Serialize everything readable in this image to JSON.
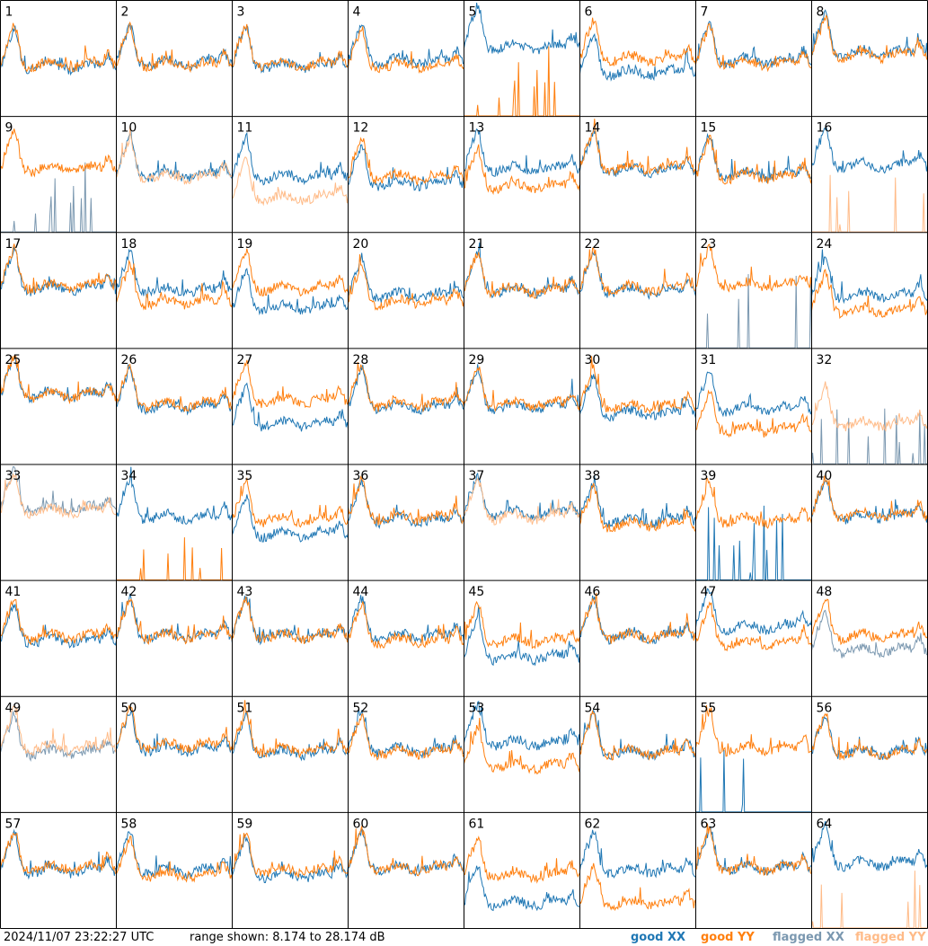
{
  "timestamp": "2024/11/07 23:22:27 UTC",
  "range_label": "range shown: 8.174 to 28.174 dB",
  "legend": {
    "good_xx": "good XX",
    "good_yy": "good YY",
    "flagged_xx": "flagged XX",
    "flagged_yy": "flagged YY"
  },
  "colors": {
    "good_xx": "#1f77b4",
    "good_yy": "#ff7f0e",
    "flagged_xx": "#7b98b0",
    "flagged_yy": "#ffbb88",
    "grid": "#000000"
  },
  "chart_data": {
    "type": "line",
    "grid_layout": "8x8 small multiples, one panel per antenna",
    "y_unit": "dB",
    "ylim": [
      8.174,
      28.174
    ],
    "series_names": [
      "good XX",
      "good YY",
      "flagged XX",
      "flagged YY"
    ],
    "panels": [
      {
        "id": "1",
        "xx": "good",
        "yy": "good",
        "xx_level": 0.43,
        "yy_level": 0.45,
        "notes": "droop at right"
      },
      {
        "id": "2",
        "xx": "good",
        "yy": "good",
        "xx_level": 0.46,
        "yy_level": 0.45
      },
      {
        "id": "3",
        "xx": "good",
        "yy": "good",
        "xx_level": 0.44,
        "yy_level": 0.45
      },
      {
        "id": "4",
        "xx": "good",
        "yy": "good",
        "xx_level": 0.48,
        "yy_level": 0.43
      },
      {
        "id": "5",
        "xx": "good",
        "yy": "good",
        "xx_level": 0.6,
        "yy_level": 0.02,
        "notes": "YY near floor with spikes"
      },
      {
        "id": "6",
        "xx": "good",
        "yy": "good",
        "xx_level": 0.38,
        "yy_level": 0.5
      },
      {
        "id": "7",
        "xx": "good",
        "yy": "good",
        "xx_level": 0.48,
        "yy_level": 0.46
      },
      {
        "id": "8",
        "xx": "good",
        "yy": "good",
        "xx_level": 0.55,
        "yy_level": 0.53
      },
      {
        "id": "9",
        "xx": "flagged",
        "yy": "good",
        "xx_level": 0.03,
        "yy_level": 0.55
      },
      {
        "id": "10",
        "xx": "good",
        "yy": "flagged",
        "xx_level": 0.5,
        "yy_level": 0.48
      },
      {
        "id": "11",
        "xx": "good",
        "yy": "flagged",
        "xx_level": 0.48,
        "yy_level": 0.3
      },
      {
        "id": "12",
        "xx": "good",
        "yy": "good",
        "xx_level": 0.42,
        "yy_level": 0.48
      },
      {
        "id": "13",
        "xx": "good",
        "yy": "good",
        "xx_level": 0.55,
        "yy_level": 0.4
      },
      {
        "id": "14",
        "xx": "good",
        "yy": "good",
        "xx_level": 0.54,
        "yy_level": 0.56
      },
      {
        "id": "15",
        "xx": "good",
        "yy": "good",
        "xx_level": 0.5,
        "yy_level": 0.48
      },
      {
        "id": "16",
        "xx": "good",
        "yy": "flagged",
        "xx_level": 0.58,
        "yy_level": 0.02
      },
      {
        "id": "17",
        "xx": "good",
        "yy": "good",
        "xx_level": 0.52,
        "yy_level": 0.54
      },
      {
        "id": "18",
        "xx": "good",
        "yy": "good",
        "xx_level": 0.5,
        "yy_level": 0.4
      },
      {
        "id": "19",
        "xx": "good",
        "yy": "good",
        "xx_level": 0.35,
        "yy_level": 0.52
      },
      {
        "id": "20",
        "xx": "good",
        "yy": "good",
        "xx_level": 0.46,
        "yy_level": 0.4
      },
      {
        "id": "21",
        "xx": "good",
        "yy": "good",
        "xx_level": 0.5,
        "yy_level": 0.5
      },
      {
        "id": "22",
        "xx": "good",
        "yy": "good",
        "xx_level": 0.5,
        "yy_level": 0.52
      },
      {
        "id": "23",
        "xx": "flagged",
        "yy": "good",
        "xx_level": 0.04,
        "yy_level": 0.55
      },
      {
        "id": "24",
        "xx": "good",
        "yy": "good",
        "xx_level": 0.46,
        "yy_level": 0.33
      },
      {
        "id": "25",
        "xx": "good",
        "yy": "good",
        "xx_level": 0.6,
        "yy_level": 0.6
      },
      {
        "id": "26",
        "xx": "good",
        "yy": "good",
        "xx_level": 0.5,
        "yy_level": 0.52
      },
      {
        "id": "27",
        "xx": "good",
        "yy": "good",
        "xx_level": 0.35,
        "yy_level": 0.55
      },
      {
        "id": "28",
        "xx": "good",
        "yy": "good",
        "xx_level": 0.5,
        "yy_level": 0.52
      },
      {
        "id": "29",
        "xx": "good",
        "yy": "good",
        "xx_level": 0.5,
        "yy_level": 0.52
      },
      {
        "id": "30",
        "xx": "good",
        "yy": "good",
        "xx_level": 0.44,
        "yy_level": 0.5
      },
      {
        "id": "31",
        "xx": "good",
        "yy": "good",
        "xx_level": 0.48,
        "yy_level": 0.3
      },
      {
        "id": "32",
        "xx": "flagged",
        "yy": "flagged",
        "xx_level": 0.02,
        "yy_level": 0.35
      },
      {
        "id": "33",
        "xx": "flagged",
        "yy": "flagged",
        "xx_level": 0.62,
        "yy_level": 0.6
      },
      {
        "id": "34",
        "xx": "good",
        "yy": "good",
        "xx_level": 0.55,
        "yy_level": 0.02
      },
      {
        "id": "35",
        "xx": "good",
        "yy": "good",
        "xx_level": 0.4,
        "yy_level": 0.52
      },
      {
        "id": "36",
        "xx": "good",
        "yy": "good",
        "xx_level": 0.52,
        "yy_level": 0.54
      },
      {
        "id": "37",
        "xx": "good",
        "yy": "flagged",
        "xx_level": 0.58,
        "yy_level": 0.55
      },
      {
        "id": "38",
        "xx": "good",
        "yy": "good",
        "xx_level": 0.52,
        "yy_level": 0.48
      },
      {
        "id": "39",
        "xx": "good",
        "yy": "good",
        "xx_level": 0.02,
        "yy_level": 0.52
      },
      {
        "id": "40",
        "xx": "good",
        "yy": "good",
        "xx_level": 0.55,
        "yy_level": 0.56
      },
      {
        "id": "41",
        "xx": "good",
        "yy": "good",
        "xx_level": 0.48,
        "yy_level": 0.52
      },
      {
        "id": "42",
        "xx": "good",
        "yy": "good",
        "xx_level": 0.52,
        "yy_level": 0.52
      },
      {
        "id": "43",
        "xx": "good",
        "yy": "good",
        "xx_level": 0.52,
        "yy_level": 0.52
      },
      {
        "id": "44",
        "xx": "good",
        "yy": "good",
        "xx_level": 0.52,
        "yy_level": 0.48
      },
      {
        "id": "45",
        "xx": "good",
        "yy": "good",
        "xx_level": 0.34,
        "yy_level": 0.48
      },
      {
        "id": "46",
        "xx": "good",
        "yy": "good",
        "xx_level": 0.52,
        "yy_level": 0.52
      },
      {
        "id": "47",
        "xx": "good",
        "yy": "good",
        "xx_level": 0.6,
        "yy_level": 0.46
      },
      {
        "id": "48",
        "xx": "flagged",
        "yy": "good",
        "xx_level": 0.4,
        "yy_level": 0.52
      },
      {
        "id": "49",
        "xx": "flagged",
        "yy": "flagged",
        "xx_level": 0.52,
        "yy_level": 0.56
      },
      {
        "id": "50",
        "xx": "good",
        "yy": "good",
        "xx_level": 0.55,
        "yy_level": 0.58
      },
      {
        "id": "51",
        "xx": "good",
        "yy": "good",
        "xx_level": 0.52,
        "yy_level": 0.54
      },
      {
        "id": "52",
        "xx": "good",
        "yy": "good",
        "xx_level": 0.54,
        "yy_level": 0.52
      },
      {
        "id": "53",
        "xx": "good",
        "yy": "good",
        "xx_level": 0.6,
        "yy_level": 0.4
      },
      {
        "id": "54",
        "xx": "good",
        "yy": "good",
        "xx_level": 0.52,
        "yy_level": 0.52
      },
      {
        "id": "55",
        "xx": "good",
        "yy": "good",
        "xx_level": 0.02,
        "yy_level": 0.55
      },
      {
        "id": "56",
        "xx": "good",
        "yy": "good",
        "xx_level": 0.52,
        "yy_level": 0.52
      },
      {
        "id": "57",
        "xx": "good",
        "yy": "good",
        "xx_level": 0.5,
        "yy_level": 0.52
      },
      {
        "id": "58",
        "xx": "good",
        "yy": "good",
        "xx_level": 0.5,
        "yy_level": 0.46
      },
      {
        "id": "59",
        "xx": "good",
        "yy": "good",
        "xx_level": 0.46,
        "yy_level": 0.5
      },
      {
        "id": "60",
        "xx": "good",
        "yy": "good",
        "xx_level": 0.52,
        "yy_level": 0.52
      },
      {
        "id": "61",
        "xx": "good",
        "yy": "good",
        "xx_level": 0.22,
        "yy_level": 0.46
      },
      {
        "id": "62",
        "xx": "good",
        "yy": "good",
        "xx_level": 0.5,
        "yy_level": 0.22
      },
      {
        "id": "63",
        "xx": "good",
        "yy": "good",
        "xx_level": 0.52,
        "yy_level": 0.52
      },
      {
        "id": "64",
        "xx": "good",
        "yy": "flagged",
        "xx_level": 0.56,
        "yy_level": 0.02
      }
    ]
  }
}
